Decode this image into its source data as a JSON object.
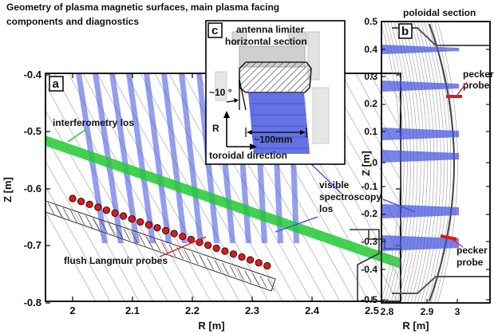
{
  "title": {
    "line1": "Geometry of plasma magnetic surfaces, main plasma facing",
    "line2": "components and diagnostics"
  },
  "panel_a": {
    "letter": "a",
    "xlabel": "R [m]",
    "ylabel": "Z [m]",
    "xticks": [
      "2",
      "2.1",
      "2.2",
      "2.3",
      "2.4",
      "2.5"
    ],
    "yticks": [
      "-0.4",
      "-0.5",
      "-0.6",
      "-0.7",
      "-0.8"
    ],
    "interferometry_label": "interferometry los",
    "langmuir_label": "flush Langmuir probes",
    "spectroscopy_label": [
      "visible",
      "spectroscopy",
      "los"
    ]
  },
  "panel_b": {
    "letter": "b",
    "title": "poloidal section",
    "xlabel": "R [m]",
    "ylabel": "Z [m]",
    "xticks": [
      "2.8",
      "2.9",
      "3"
    ],
    "yticks": [
      "0.5",
      "0.4",
      "0.3",
      "0.2",
      "0.1",
      "0",
      "-0.1",
      "-0.2",
      "-0.3",
      "-0.4",
      "-0.5"
    ],
    "pecker_top": [
      "pecker",
      "probe"
    ],
    "pecker_bottom": [
      "pecker",
      "probe"
    ]
  },
  "panel_c": {
    "letter": "c",
    "title_line1": "antenna limiter",
    "title_line2": "horizontal section",
    "angle_label": "~10 °",
    "width_label": "~100mm",
    "r_axis_label": "R",
    "toroidal_label": "toroidal direction"
  },
  "colors": {
    "los_blue": "#3d4fe0",
    "interferometry_green": "#22c934",
    "probe_red": "#e01818",
    "flux_line": "#9a9a9a"
  }
}
